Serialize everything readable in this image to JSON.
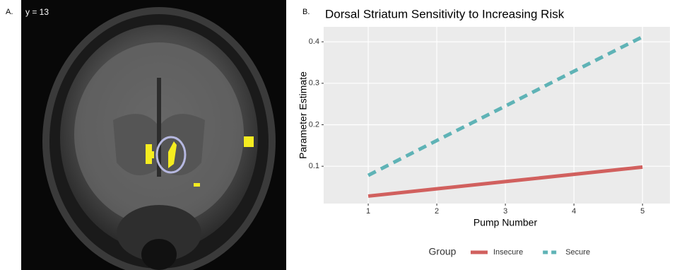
{
  "panel_a": {
    "label": "A.",
    "slice": "y = 13"
  },
  "chart_data": {
    "type": "line",
    "panel_label": "B.",
    "title": "Dorsal Striatum Sensitivity to Increasing Risk",
    "x_label": "Pump Number",
    "y_label": "Parameter Estimate",
    "x": [
      1,
      2,
      3,
      4,
      5
    ],
    "series": [
      {
        "name": "Insecure",
        "color": "#d1605e",
        "dash": false,
        "values": [
          0.028,
          0.0455,
          0.063,
          0.0805,
          0.098
        ]
      },
      {
        "name": "Secure",
        "color": "#5fb3b6",
        "dash": true,
        "values": [
          0.078,
          0.162,
          0.245,
          0.329,
          0.412
        ]
      }
    ],
    "xlim": [
      0.35,
      5.4
    ],
    "xticks": [
      1,
      2,
      3,
      4,
      5
    ],
    "ylim": [
      0.01,
      0.436
    ],
    "yticks": [
      0.1,
      0.2,
      0.3,
      0.4
    ],
    "grid": true,
    "legend": "bottom",
    "legend_title": "Group"
  }
}
